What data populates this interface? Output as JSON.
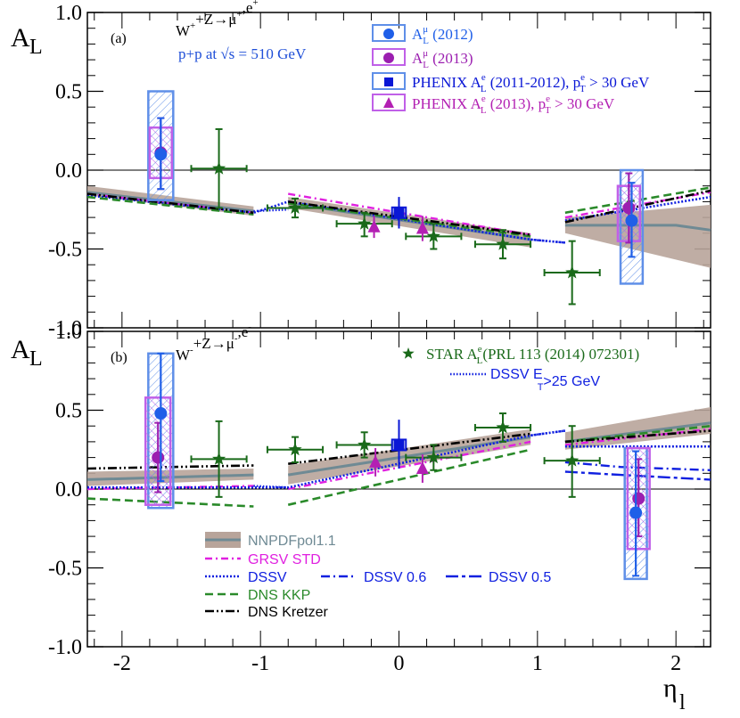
{
  "chart_data": {
    "type": "scatter",
    "x_label": "η",
    "x_label_sub": "l",
    "x_range": [
      -2.25,
      2.25
    ],
    "x_ticks": [
      {
        "value": -2,
        "label": "-2"
      },
      {
        "value": -1,
        "label": "-1"
      },
      {
        "value": 0,
        "label": "0"
      },
      {
        "value": 1,
        "label": "1"
      },
      {
        "value": 2,
        "label": "2"
      }
    ],
    "y_range": [
      -1.0,
      1.0
    ],
    "y_label": "A",
    "y_label_sub": "L",
    "y_ticks": [
      {
        "value": 1.0,
        "label": "1.0"
      },
      {
        "value": 0.5,
        "label": "0.5"
      },
      {
        "value": 0.0,
        "label": "0.0"
      },
      {
        "value": -0.5,
        "label": "-0.5"
      },
      {
        "value": -1.0,
        "label": "-1.0"
      }
    ],
    "legend_a": {
      "items": [
        {
          "key": "mu2012",
          "main": "A",
          "sup": "μ",
          "sub": "L",
          "rest": " (2012)",
          "color": "#1f5fe8"
        },
        {
          "key": "mu2013",
          "main": "A",
          "sup": "μ",
          "sub": "L",
          "rest": " (2013)",
          "color": "#9b1fb0"
        },
        {
          "key": "phenix1112",
          "pre": "PHENIX A",
          "sup": "e",
          "sub": "L",
          "rest": " (2011-2012), p",
          "sup2": "e",
          "sub2": "T",
          "rest2": " > 30 GeV",
          "color": "#0a17d6"
        },
        {
          "key": "phenix13",
          "pre": "PHENIX A",
          "sup": "e",
          "sub": "L",
          "rest": " (2013), p",
          "sup2": "e",
          "sub2": "T",
          "rest2": " > 30 GeV",
          "color": "#b320b3"
        }
      ]
    },
    "legend_b": {
      "star_label": "STAR A",
      "star_sup": "e",
      "star_sub": "L",
      "star_rest": "(PRL 113 (2014) 072301)",
      "dssv_et": "DSSV E",
      "dssv_et_sub": "T",
      "dssv_et_rest": ">25 GeV"
    },
    "legend_models": [
      {
        "key": "nnpdf",
        "label": "NNPDFpol1.1",
        "color": "#6f8a94",
        "band": "#b8a49a"
      },
      {
        "key": "grsv",
        "label": "GRSV STD",
        "color": "#e020e0"
      },
      {
        "key": "dssv",
        "label": "DSSV",
        "color": "#1020e0"
      },
      {
        "key": "dssv06",
        "label": "DSSV 0.6",
        "color": "#1020e0"
      },
      {
        "key": "dssv05",
        "label": "DSSV 0.5",
        "color": "#1020e0"
      },
      {
        "key": "dnskkp",
        "label": "DNS KKP",
        "color": "#2a8a2a"
      },
      {
        "key": "dnskretzer",
        "label": "DNS Kretzer",
        "color": "#000000"
      }
    ],
    "panels": [
      {
        "id": "a",
        "tag": "(a)",
        "title_main": "W",
        "title_sup": "+",
        "title_mid": "+Z→μ",
        "title_sup2": "+",
        "title_rest": ",e",
        "title_sup3": "+",
        "subtitle": "p+p at √s = 510 GeV",
        "bands": [
          {
            "x": [
              -2.25,
              -1.05
            ],
            "lo": [
              -0.16,
              -0.29
            ],
            "hi": [
              -0.1,
              -0.23
            ]
          },
          {
            "x": [
              -0.8,
              0.95
            ],
            "lo": [
              -0.24,
              -0.49
            ],
            "hi": [
              -0.17,
              -0.4
            ]
          },
          {
            "x": [
              1.2,
              2.25
            ],
            "lo": [
              -0.4,
              -0.62
            ],
            "hi": [
              -0.3,
              -0.22
            ]
          }
        ],
        "nnpdf_line": [
          [
            -2.25,
            -0.14
          ],
          [
            -1.05,
            -0.26
          ],
          null,
          [
            -0.8,
            -0.21
          ],
          [
            0.95,
            -0.44
          ],
          null,
          [
            1.2,
            -0.35
          ],
          [
            1.7,
            -0.35
          ],
          [
            2.0,
            -0.35
          ],
          [
            2.25,
            -0.38
          ]
        ],
        "curves": {
          "grsv": [
            [
              -2.25,
              -0.15
            ],
            [
              -1.05,
              -0.27
            ],
            null,
            [
              -0.8,
              -0.15
            ],
            [
              0.95,
              -0.41
            ],
            null,
            [
              1.2,
              -0.3
            ],
            [
              2.25,
              -0.14
            ]
          ],
          "dssv": [
            [
              -2.25,
              -0.16
            ],
            [
              -1.05,
              -0.27
            ],
            [
              -0.8,
              -0.2
            ],
            [
              0.95,
              -0.44
            ],
            [
              1.2,
              -0.46
            ],
            null,
            [
              1.2,
              -0.32
            ],
            [
              2.25,
              -0.17
            ]
          ],
          "dnskkp": [
            [
              -2.25,
              -0.17
            ],
            [
              -1.05,
              -0.28
            ],
            null,
            [
              -0.8,
              -0.21
            ],
            [
              0.95,
              -0.42
            ],
            null,
            [
              1.2,
              -0.27
            ],
            [
              2.25,
              -0.11
            ]
          ],
          "dnskretzer": [
            [
              -2.25,
              -0.15
            ],
            [
              -1.05,
              -0.27
            ],
            null,
            [
              -0.8,
              -0.2
            ],
            [
              0.95,
              -0.41
            ],
            null,
            [
              1.2,
              -0.33
            ],
            [
              2.25,
              -0.13
            ]
          ]
        },
        "dssv_et_line": [
          [
            -1.05,
            -0.26
          ],
          [
            -0.8,
            -0.25
          ],
          null,
          [
            0.95,
            -0.44
          ],
          [
            1.2,
            -0.46
          ]
        ],
        "boxes": [
          {
            "x": -1.72,
            "hw": 0.09,
            "lo": -0.19,
            "hi": 0.5,
            "color": "#5f8fe8",
            "hatch": "hatchBlue"
          },
          {
            "x": -1.72,
            "hw": 0.08,
            "lo": -0.05,
            "hi": 0.27,
            "color": "#c060e8",
            "hatch": "hatchPurple"
          },
          {
            "x": 1.68,
            "hw": 0.08,
            "lo": -0.72,
            "hi": 0.0,
            "color": "#5f8fe8",
            "hatch": "hatchBlue"
          },
          {
            "x": 1.66,
            "hw": 0.08,
            "lo": -0.45,
            "hi": -0.1,
            "color": "#c060e8",
            "hatch": "hatchPurple"
          }
        ],
        "mu2012": [
          {
            "x": -1.72,
            "y": 0.1,
            "lo": -0.12,
            "hi": 0.33
          },
          {
            "x": 1.68,
            "y": -0.32,
            "lo": -0.55,
            "hi": -0.08
          }
        ],
        "mu2013": [
          {
            "x": -1.72,
            "y": 0.11,
            "lo": -0.12,
            "hi": 0.33
          },
          {
            "x": 1.66,
            "y": -0.24,
            "lo": -0.46,
            "hi": -0.02
          }
        ],
        "phenix1112": [
          {
            "x": 0.0,
            "y": -0.27,
            "xerr": 0.05,
            "lo": -0.37,
            "hi": -0.17
          }
        ],
        "phenix13": [
          {
            "x": -0.18,
            "y": -0.36,
            "lo": -0.43,
            "hi": -0.29
          },
          {
            "x": 0.17,
            "y": -0.37,
            "lo": -0.45,
            "hi": -0.29
          }
        ],
        "star": [
          {
            "x": -1.3,
            "y": 0.01,
            "xerr": 0.2,
            "lo": -0.24,
            "hi": 0.26
          },
          {
            "x": -0.75,
            "y": -0.24,
            "xerr": 0.2,
            "lo": -0.3,
            "hi": -0.18
          },
          {
            "x": -0.25,
            "y": -0.34,
            "xerr": 0.2,
            "lo": -0.42,
            "hi": -0.27
          },
          {
            "x": 0.25,
            "y": -0.42,
            "xerr": 0.2,
            "lo": -0.5,
            "hi": -0.34
          },
          {
            "x": 0.75,
            "y": -0.47,
            "xerr": 0.2,
            "lo": -0.56,
            "hi": -0.38
          },
          {
            "x": 1.25,
            "y": -0.65,
            "xerr": 0.2,
            "lo": -0.85,
            "hi": -0.45
          }
        ]
      },
      {
        "id": "b",
        "tag": "(b)",
        "title_main": "W",
        "title_sup": "-",
        "title_mid": "+Z→μ",
        "title_sup2": "-",
        "title_rest": ",e",
        "title_sup3": "-",
        "subtitle": "",
        "bands": [
          {
            "x": [
              -2.25,
              -1.05
            ],
            "lo": [
              0.02,
              0.06
            ],
            "hi": [
              0.11,
              0.13
            ]
          },
          {
            "x": [
              -0.8,
              0.95
            ],
            "lo": [
              0.03,
              0.28
            ],
            "hi": [
              0.15,
              0.38
            ]
          },
          {
            "x": [
              1.2,
              2.25
            ],
            "lo": [
              0.25,
              0.35
            ],
            "hi": [
              0.36,
              0.52
            ]
          }
        ],
        "nnpdf_line": [
          [
            -2.25,
            0.06
          ],
          [
            -1.05,
            0.09
          ],
          null,
          [
            -0.8,
            0.09
          ],
          [
            0.95,
            0.33
          ],
          null,
          [
            1.2,
            0.3
          ],
          [
            2.25,
            0.42
          ]
        ],
        "curves": {
          "grsv": [
            [
              -2.25,
              0.0
            ],
            [
              -1.05,
              0.02
            ],
            null,
            [
              -0.8,
              0.0
            ],
            [
              0.95,
              0.3
            ],
            null,
            [
              1.2,
              0.28
            ],
            [
              2.25,
              0.38
            ]
          ],
          "dssv": [
            [
              -2.25,
              0.01
            ],
            [
              -1.05,
              0.01
            ],
            [
              -0.8,
              0.01
            ],
            [
              0.95,
              0.34
            ],
            [
              1.2,
              0.37
            ],
            null,
            [
              1.2,
              0.27
            ],
            [
              2.25,
              0.27
            ]
          ],
          "dssv06": [
            [
              1.2,
              0.17
            ],
            [
              1.6,
              0.14
            ],
            [
              2.25,
              0.12
            ]
          ],
          "dssv05": [
            [
              1.2,
              0.11
            ],
            [
              1.6,
              0.09
            ],
            [
              2.25,
              0.06
            ]
          ],
          "dnskkp": [
            [
              -2.25,
              -0.06
            ],
            [
              -1.05,
              -0.11
            ],
            null,
            [
              -0.8,
              -0.1
            ],
            [
              0.95,
              0.25
            ],
            null,
            [
              1.2,
              0.3
            ],
            [
              2.25,
              0.4
            ]
          ],
          "dnskretzer": [
            [
              -2.25,
              0.13
            ],
            [
              -1.05,
              0.15
            ],
            null,
            [
              -0.8,
              0.16
            ],
            [
              0.95,
              0.35
            ],
            null,
            [
              1.2,
              0.3
            ],
            [
              2.25,
              0.37
            ]
          ]
        },
        "dssv_et_line": [
          [
            -1.05,
            0.02
          ],
          [
            -0.8,
            0.01
          ],
          null,
          [
            0.95,
            0.34
          ],
          [
            1.2,
            0.37
          ]
        ],
        "boxes": [
          {
            "x": -1.72,
            "hw": 0.09,
            "lo": -0.12,
            "hi": 0.86,
            "color": "#5f8fe8",
            "hatch": "hatchBlue"
          },
          {
            "x": -1.74,
            "hw": 0.09,
            "lo": -0.1,
            "hi": 0.58,
            "color": "#c060e8",
            "hatch": "hatchPurple"
          },
          {
            "x": 1.71,
            "hw": 0.08,
            "lo": -0.57,
            "hi": 0.26,
            "color": "#5f8fe8",
            "hatch": "hatchBlue"
          },
          {
            "x": 1.73,
            "hw": 0.08,
            "lo": -0.38,
            "hi": 0.26,
            "color": "#c060e8",
            "hatch": "hatchPurple"
          }
        ],
        "mu2012": [
          {
            "x": -1.72,
            "y": 0.48,
            "lo": 0.05,
            "hi": 0.86
          },
          {
            "x": 1.71,
            "y": -0.15,
            "lo": -0.55,
            "hi": 0.24
          }
        ],
        "mu2013": [
          {
            "x": -1.74,
            "y": 0.2,
            "lo": -0.02,
            "hi": 0.42
          },
          {
            "x": 1.73,
            "y": -0.06,
            "lo": -0.3,
            "hi": 0.19
          }
        ],
        "phenix1112": [
          {
            "x": 0.0,
            "y": 0.28,
            "xerr": 0.05,
            "lo": 0.13,
            "hi": 0.44
          }
        ],
        "phenix13": [
          {
            "x": -0.17,
            "y": 0.17,
            "lo": 0.08,
            "hi": 0.26
          },
          {
            "x": 0.17,
            "y": 0.13,
            "lo": 0.04,
            "hi": 0.22
          }
        ],
        "star": [
          {
            "x": -1.3,
            "y": 0.19,
            "xerr": 0.2,
            "lo": -0.05,
            "hi": 0.43
          },
          {
            "x": -0.75,
            "y": 0.25,
            "xerr": 0.2,
            "lo": 0.17,
            "hi": 0.33
          },
          {
            "x": -0.25,
            "y": 0.28,
            "xerr": 0.2,
            "lo": 0.2,
            "hi": 0.36
          },
          {
            "x": 0.25,
            "y": 0.2,
            "xerr": 0.2,
            "lo": 0.12,
            "hi": 0.28
          },
          {
            "x": 0.75,
            "y": 0.39,
            "xerr": 0.2,
            "lo": 0.3,
            "hi": 0.48
          },
          {
            "x": 1.25,
            "y": 0.18,
            "xerr": 0.2,
            "lo": -0.05,
            "hi": 0.4
          }
        ]
      }
    ]
  }
}
